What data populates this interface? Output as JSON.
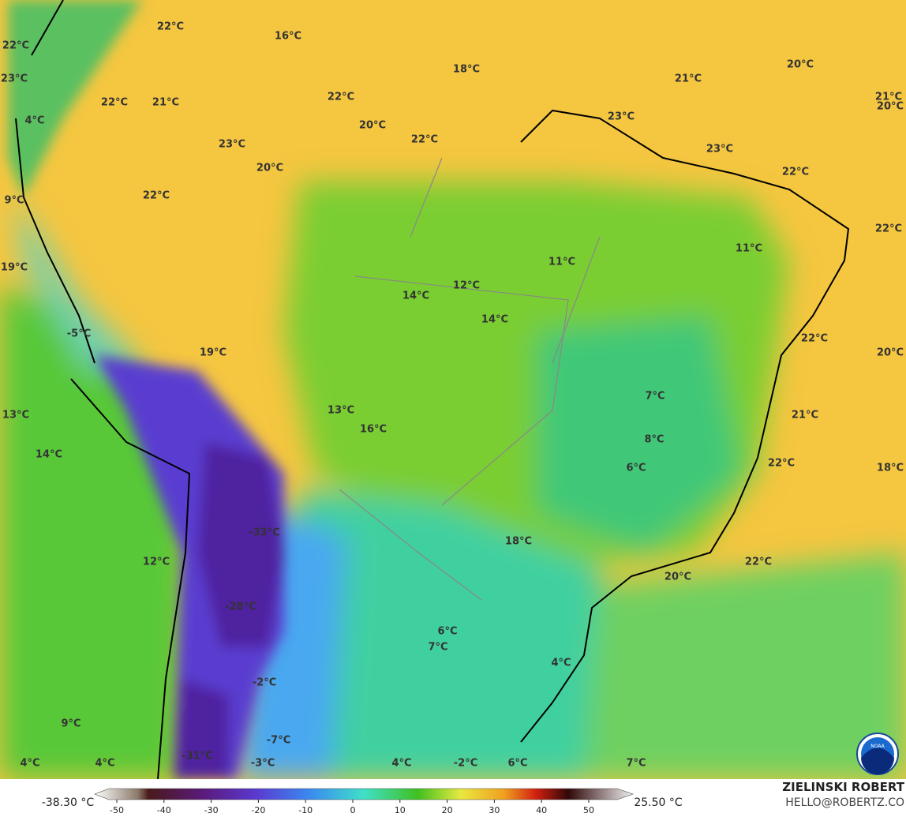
{
  "map": {
    "labels": [
      "22°C",
      "16°C",
      "18°C",
      "20°C",
      "21°C",
      "21°C",
      "20°C",
      "22°C",
      "23°C",
      "22°C",
      "21°C",
      "22°C",
      "4°C",
      "20°C",
      "23°C",
      "22°C",
      "23°C",
      "23°C",
      "20°C",
      "22°C",
      "22°C",
      "9°C",
      "22°C",
      "11°C",
      "11°C",
      "19°C",
      "12°C",
      "14°C",
      "14°C",
      "-5°C",
      "22°C",
      "20°C",
      "19°C",
      "7°C",
      "13°C",
      "21°C",
      "13°C",
      "16°C",
      "8°C",
      "14°C",
      "22°C",
      "6°C",
      "18°C",
      "-33°C",
      "18°C",
      "12°C",
      "22°C",
      "20°C",
      "-28°C",
      "6°C",
      "7°C",
      "4°C",
      "-2°C",
      "9°C",
      "-7°C",
      "4°C",
      "4°C",
      "-31°C",
      "-3°C",
      "4°C",
      "-2°C",
      "6°C",
      "7°C"
    ]
  },
  "colorbar": {
    "min_label": "-38.30 °C",
    "max_label": "25.50 °C",
    "ticks": [
      -50,
      -40,
      -30,
      -20,
      -10,
      0,
      10,
      20,
      30,
      40,
      50
    ]
  },
  "credit": {
    "name": "ZIELINSKI ROBERT",
    "email": "HELLO@ROBERTZ.CO",
    "logo": "NOAA"
  }
}
